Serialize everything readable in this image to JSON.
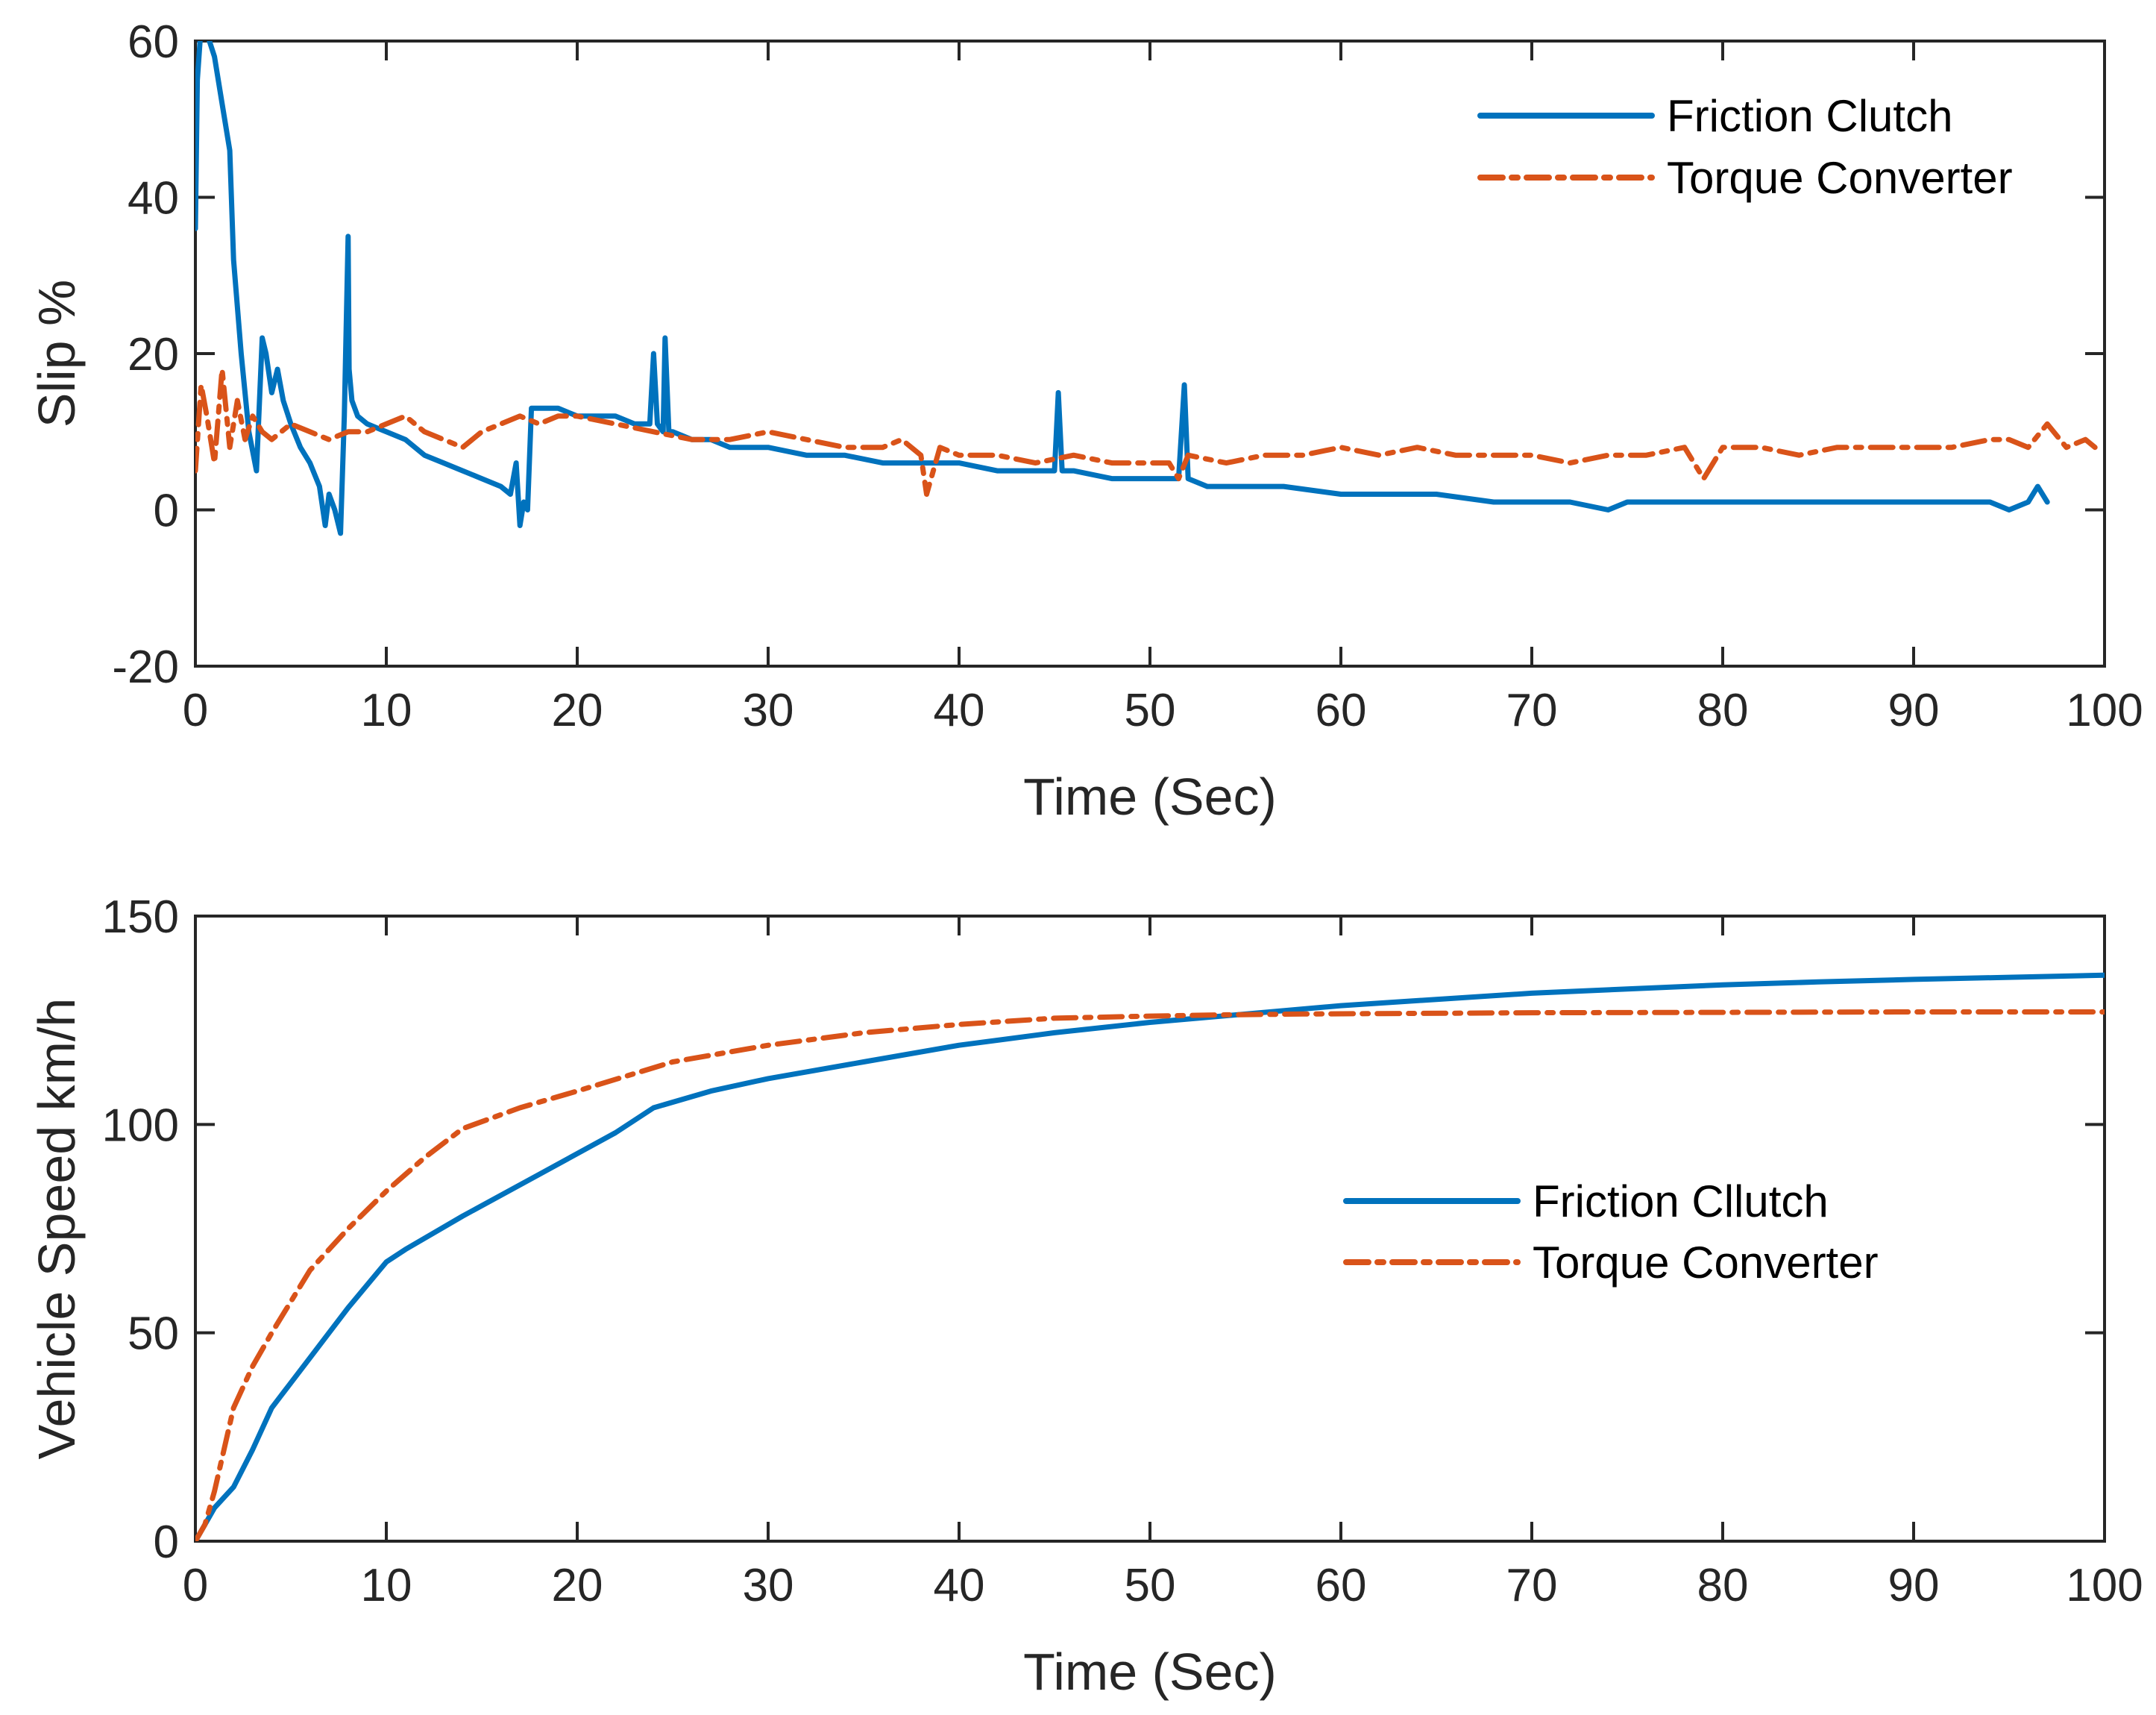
{
  "colors": {
    "friction": "#0072BD",
    "torque": "#D95319",
    "axis": "#262626"
  },
  "chart_data": [
    {
      "type": "line",
      "xlabel": "Time (Sec)",
      "ylabel": "Slip %",
      "xlim": [
        0,
        100
      ],
      "ylim": [
        -20,
        60
      ],
      "xticks": [
        0,
        10,
        20,
        30,
        40,
        50,
        60,
        70,
        80,
        90,
        100
      ],
      "xtick_labels": [
        "0",
        "10",
        "20",
        "30",
        "40",
        "50",
        "60",
        "70",
        "80",
        "90",
        "100"
      ],
      "yticks": [
        -20,
        0,
        20,
        40,
        60
      ],
      "ytick_labels": [
        "-20",
        "0",
        "20",
        "40",
        "60"
      ],
      "legend_position": "top-right",
      "legend_labels": [
        "Friction Clutch",
        "Torque Converter"
      ],
      "series": [
        {
          "name": "Friction Clutch",
          "style": "solid",
          "x": [
            0,
            0.1,
            0.3,
            0.6,
            1.0,
            1.4,
            1.8,
            2.0,
            2.4,
            2.8,
            3.2,
            3.5,
            3.7,
            4.0,
            4.3,
            4.6,
            5.0,
            5.5,
            6.0,
            6.5,
            6.8,
            7.0,
            7.3,
            7.6,
            7.8,
            8.0,
            8.05,
            8.2,
            8.5,
            9.0,
            10,
            11,
            12,
            13,
            14,
            15,
            16,
            16.5,
            16.8,
            17.0,
            17.2,
            17.4,
            17.6,
            18,
            19,
            20,
            21,
            22,
            23,
            23.8,
            24.0,
            24.2,
            24.5,
            24.6,
            24.8,
            25,
            26,
            27,
            28,
            30,
            32,
            34,
            36,
            38,
            40,
            42,
            44,
            45.0,
            45.2,
            45.4,
            46,
            48,
            50,
            51.5,
            51.8,
            52.0,
            53,
            55,
            57,
            60,
            62,
            65,
            68,
            70,
            72,
            74,
            75,
            78,
            80,
            82,
            84,
            86,
            88,
            90,
            92,
            94,
            95,
            96,
            96.5,
            97
          ],
          "y": [
            36,
            55,
            62,
            61,
            58,
            52,
            46,
            32,
            20,
            10,
            5,
            22,
            20,
            15,
            18,
            14,
            11,
            8,
            6,
            3,
            -2,
            2,
            0,
            -3,
            12,
            35,
            18,
            14,
            12,
            11,
            10,
            9,
            7,
            6,
            5,
            4,
            3,
            2,
            6,
            -2,
            1,
            0,
            13,
            13,
            13,
            12,
            12,
            12,
            11,
            11,
            20,
            11,
            10,
            22,
            10,
            10,
            9,
            9,
            8,
            8,
            7,
            7,
            6,
            6,
            6,
            5,
            5,
            5,
            15,
            5,
            5,
            4,
            4,
            4,
            16,
            4,
            3,
            3,
            3,
            2,
            2,
            2,
            1,
            1,
            1,
            0,
            1,
            1,
            1,
            1,
            1,
            1,
            1,
            1,
            1,
            1,
            0,
            1,
            3,
            1
          ]
        },
        {
          "name": "Torque Converter",
          "style": "dashdot",
          "x": [
            0,
            0.3,
            0.6,
            1.0,
            1.4,
            1.8,
            2.2,
            2.6,
            3.0,
            3.5,
            4.0,
            5,
            6,
            7,
            8,
            9,
            10,
            11,
            12,
            13,
            14,
            15,
            16,
            17,
            18,
            19,
            20,
            22,
            24,
            26,
            28,
            30,
            32,
            34,
            36,
            37,
            38,
            38.3,
            39,
            40,
            42,
            44,
            46,
            48,
            50,
            51,
            51.5,
            52,
            54,
            56,
            58,
            60,
            62,
            64,
            66,
            68,
            70,
            72,
            74,
            76,
            78,
            79,
            80,
            82,
            84,
            86,
            88,
            90,
            92,
            94,
            95,
            96,
            97,
            98,
            99,
            99.5
          ],
          "y": [
            5,
            16,
            12,
            6,
            18,
            8,
            14,
            9,
            12,
            10,
            9,
            11,
            10,
            9,
            10,
            10,
            11,
            12,
            10,
            9,
            8,
            10,
            11,
            12,
            11,
            12,
            12,
            11,
            10,
            9,
            9,
            10,
            9,
            8,
            8,
            9,
            7,
            2,
            8,
            7,
            7,
            6,
            7,
            6,
            6,
            6,
            4,
            7,
            6,
            7,
            7,
            8,
            7,
            8,
            7,
            7,
            7,
            6,
            7,
            7,
            8,
            4,
            8,
            8,
            7,
            8,
            8,
            8,
            8,
            9,
            9,
            8,
            11,
            8,
            9,
            8
          ]
        }
      ]
    },
    {
      "type": "line",
      "xlabel": "Time (Sec)",
      "ylabel": "Vehicle Speed km/h",
      "xlim": [
        0,
        100
      ],
      "ylim": [
        0,
        150
      ],
      "xticks": [
        0,
        10,
        20,
        30,
        40,
        50,
        60,
        70,
        80,
        90,
        100
      ],
      "xtick_labels": [
        "0",
        "10",
        "20",
        "30",
        "40",
        "50",
        "60",
        "70",
        "80",
        "90",
        "100"
      ],
      "yticks": [
        0,
        50,
        100,
        150
      ],
      "ytick_labels": [
        "0",
        "50",
        "100",
        "150"
      ],
      "legend_position": "center-right",
      "legend_labels": [
        "Friction Cllutch",
        "Torque Converter"
      ],
      "series": [
        {
          "name": "Friction Cllutch",
          "style": "solid",
          "x": [
            0,
            1,
            2,
            3,
            4,
            6,
            8,
            10,
            11,
            14,
            18,
            22,
            24,
            27,
            30,
            35,
            40,
            45,
            50,
            55,
            60,
            65,
            70,
            75,
            80,
            85,
            90,
            95,
            100
          ],
          "y": [
            0,
            8,
            13,
            22,
            32,
            44,
            56,
            67,
            70,
            78,
            88,
            98,
            104,
            108,
            111,
            115,
            119,
            122,
            124.5,
            126.5,
            128.5,
            130,
            131.5,
            132.5,
            133.5,
            134.2,
            134.8,
            135.3,
            135.8
          ]
        },
        {
          "name": "Torque Converter",
          "style": "dashdot",
          "x": [
            0,
            0.5,
            1,
            2,
            3,
            4,
            6,
            8,
            10,
            12,
            14,
            17,
            20,
            25,
            30,
            35,
            40,
            45,
            50,
            54,
            58,
            62,
            66,
            70,
            80,
            90,
            100
          ],
          "y": [
            0,
            4,
            12,
            32,
            42,
            50,
            65,
            75,
            84,
            92,
            99,
            104,
            108,
            115,
            119,
            122,
            124,
            125.5,
            126,
            126.3,
            126.5,
            126.6,
            126.7,
            126.8,
            126.9,
            127,
            127
          ]
        }
      ]
    }
  ]
}
